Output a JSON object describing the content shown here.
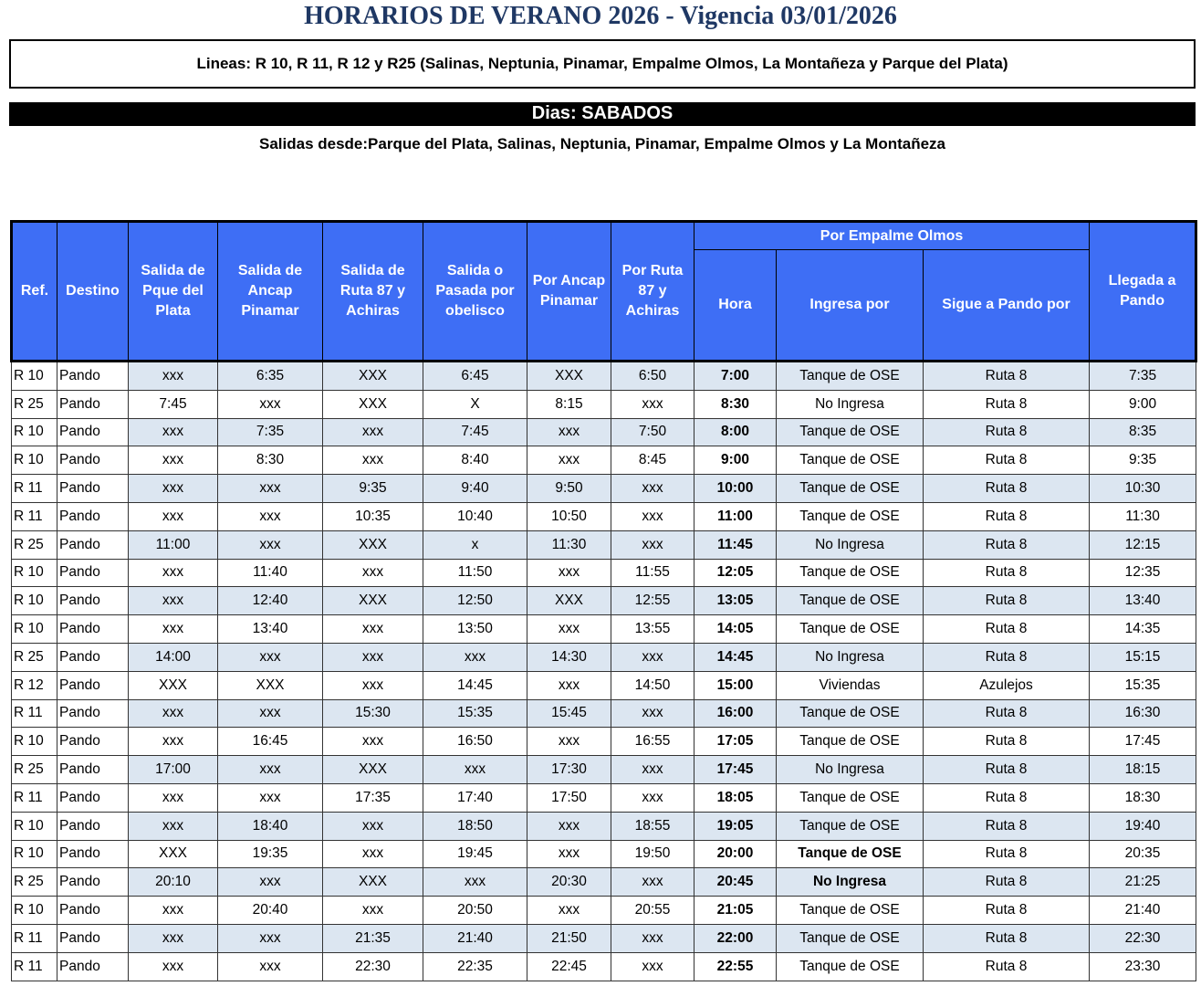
{
  "header": {
    "title": "HORARIOS DE VERANO 2026 - Vigencia 03/01/2026",
    "lines": "Lineas: R 10, R 11, R 12 y R25 (Salinas, Neptunia, Pinamar, Empalme Olmos, La Montañeza y Parque del Plata)",
    "days": "Dias: SABADOS",
    "departures": "Salidas desde:Parque del Plata, Salinas, Neptunia, Pinamar, Empalme Olmos y La Montañeza"
  },
  "table": {
    "columns": [
      "Ref.",
      "Destino",
      "Salida de Pque del Plata",
      "Salida de Ancap Pinamar",
      "Salida de Ruta 87 y Achiras",
      "Salida o Pasada por obelisco",
      "Por Ancap Pinamar",
      "Por Ruta 87 y Achiras"
    ],
    "group": "Por Empalme Olmos",
    "subcolumns": [
      "Hora",
      "Ingresa por",
      "Sigue a Pando por"
    ],
    "last_column": "Llegada a Pando",
    "rows": [
      [
        "R 10",
        "Pando",
        "xxx",
        "6:35",
        "XXX",
        "6:45",
        "XXX",
        "6:50",
        "7:00",
        "Tanque de OSE",
        "Ruta 8",
        "7:35"
      ],
      [
        "R 25",
        "Pando",
        "7:45",
        "xxx",
        "XXX",
        "X",
        "8:15",
        "xxx",
        "8:30",
        "No Ingresa",
        "Ruta 8",
        "9:00"
      ],
      [
        "R 10",
        "Pando",
        "xxx",
        "7:35",
        "xxx",
        "7:45",
        "xxx",
        "7:50",
        "8:00",
        "Tanque de OSE",
        "Ruta 8",
        "8:35"
      ],
      [
        "R 10",
        "Pando",
        "xxx",
        "8:30",
        "xxx",
        "8:40",
        "xxx",
        "8:45",
        "9:00",
        "Tanque de OSE",
        "Ruta 8",
        "9:35"
      ],
      [
        "R 11",
        "Pando",
        "xxx",
        "xxx",
        "9:35",
        "9:40",
        "9:50",
        "xxx",
        "10:00",
        "Tanque de OSE",
        "Ruta 8",
        "10:30"
      ],
      [
        "R 11",
        "Pando",
        "xxx",
        "xxx",
        "10:35",
        "10:40",
        "10:50",
        "xxx",
        "11:00",
        "Tanque de OSE",
        "Ruta 8",
        "11:30"
      ],
      [
        "R 25",
        "Pando",
        "11:00",
        "xxx",
        "XXX",
        "x",
        "11:30",
        "xxx",
        "11:45",
        "No Ingresa",
        "Ruta 8",
        "12:15"
      ],
      [
        "R 10",
        "Pando",
        "xxx",
        "11:40",
        "xxx",
        "11:50",
        "xxx",
        "11:55",
        "12:05",
        "Tanque de OSE",
        "Ruta 8",
        "12:35"
      ],
      [
        "R 10",
        "Pando",
        "xxx",
        "12:40",
        "XXX",
        "12:50",
        "XXX",
        "12:55",
        "13:05",
        "Tanque de OSE",
        "Ruta 8",
        "13:40"
      ],
      [
        "R 10",
        "Pando",
        "xxx",
        "13:40",
        "xxx",
        "13:50",
        "xxx",
        "13:55",
        "14:05",
        "Tanque de OSE",
        "Ruta 8",
        "14:35"
      ],
      [
        "R 25",
        "Pando",
        "14:00",
        "xxx",
        "xxx",
        "xxx",
        "14:30",
        "xxx",
        "14:45",
        "No Ingresa",
        "Ruta 8",
        "15:15"
      ],
      [
        "R 12",
        "Pando",
        "XXX",
        "XXX",
        "xxx",
        "14:45",
        "xxx",
        "14:50",
        "15:00",
        "Viviendas",
        "Azulejos",
        "15:35"
      ],
      [
        "R 11",
        "Pando",
        "xxx",
        "xxx",
        "15:30",
        "15:35",
        "15:45",
        "xxx",
        "16:00",
        "Tanque de OSE",
        "Ruta 8",
        "16:30"
      ],
      [
        "R 10",
        "Pando",
        "xxx",
        "16:45",
        "xxx",
        "16:50",
        "xxx",
        "16:55",
        "17:05",
        "Tanque de OSE",
        "Ruta 8",
        "17:45"
      ],
      [
        "R 25",
        "Pando",
        "17:00",
        "xxx",
        "XXX",
        "xxx",
        "17:30",
        "xxx",
        "17:45",
        "No Ingresa",
        "Ruta 8",
        "18:15"
      ],
      [
        "R 11",
        "Pando",
        "xxx",
        "xxx",
        "17:35",
        "17:40",
        "17:50",
        "xxx",
        "18:05",
        "Tanque de OSE",
        "Ruta 8",
        "18:30"
      ],
      [
        "R 10",
        "Pando",
        "xxx",
        "18:40",
        "xxx",
        "18:50",
        "xxx",
        "18:55",
        "19:05",
        "Tanque de OSE",
        "Ruta 8",
        "19:40"
      ],
      [
        "R 10",
        "Pando",
        "XXX",
        "19:35",
        "xxx",
        "19:45",
        "xxx",
        "19:50",
        "20:00",
        "Tanque de OSE",
        "Ruta 8",
        "20:35"
      ],
      [
        "R 25",
        "Pando",
        "20:10",
        "xxx",
        "XXX",
        "xxx",
        "20:30",
        "xxx",
        "20:45",
        "No Ingresa",
        "Ruta 8",
        "21:25"
      ],
      [
        "R 10",
        "Pando",
        "xxx",
        "20:40",
        "xxx",
        "20:50",
        "xxx",
        "20:55",
        "21:05",
        "Tanque de OSE",
        "Ruta 8",
        "21:40"
      ],
      [
        "R 11",
        "Pando",
        "xxx",
        "xxx",
        "21:35",
        "21:40",
        "21:50",
        "xxx",
        "22:00",
        "Tanque de OSE",
        "Ruta 8",
        "22:30"
      ],
      [
        "R 11",
        "Pando",
        "xxx",
        "xxx",
        "22:30",
        "22:35",
        "22:45",
        "xxx",
        "22:55",
        "Tanque de OSE",
        "Ruta 8",
        "23:30"
      ]
    ]
  }
}
